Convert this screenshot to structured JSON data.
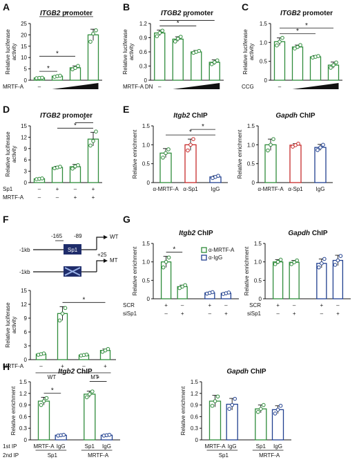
{
  "colors": {
    "green": "#2e8b3a",
    "red": "#c62828",
    "blue": "#1f3f8f",
    "black": "#111111"
  },
  "panel_letters": [
    "A",
    "B",
    "C",
    "D",
    "E",
    "F",
    "G",
    "H"
  ],
  "chart_data": [
    {
      "id": "A",
      "type": "bar",
      "title": {
        "italic": "ITGB2",
        "rest": " promoter"
      },
      "ylabel": "Relative luciferase activity",
      "ylim": [
        0,
        25
      ],
      "yticks": [
        "0",
        "5",
        "10",
        "15",
        "20",
        "25"
      ],
      "series": [
        {
          "color": "green",
          "values": [
            1.0,
            1.8,
            5.5,
            20.0
          ],
          "errors": [
            0.2,
            0.3,
            0.8,
            2.5
          ],
          "points": [
            [
              0.9,
              1.0,
              1.1
            ],
            [
              1.5,
              1.8,
              2.0
            ],
            [
              4.8,
              5.4,
              6.3
            ],
            [
              17.0,
              20.5,
              22.0
            ]
          ]
        }
      ],
      "conditions": [
        {
          "label": "MRTF-A",
          "marks": [
            "–",
            "ramp",
            "ramp",
            "ramp"
          ]
        }
      ],
      "significance": [
        [
          0,
          1
        ],
        [
          0,
          2
        ],
        [
          0,
          3
        ]
      ]
    },
    {
      "id": "B",
      "type": "bar",
      "title": {
        "italic": "ITGB2",
        "rest": " promoter"
      },
      "ylabel": "Relative luciferase activity",
      "ylim": [
        0,
        1.2
      ],
      "yticks": [
        "0",
        "0.3",
        "0.6",
        "0.9",
        "1.2"
      ],
      "series": [
        {
          "color": "green",
          "values": [
            1.0,
            0.87,
            0.6,
            0.38
          ],
          "errors": [
            0.06,
            0.05,
            0.03,
            0.05
          ],
          "points": [
            [
              0.93,
              1.0,
              1.05
            ],
            [
              0.82,
              0.88,
              0.92
            ],
            [
              0.58,
              0.6,
              0.62
            ],
            [
              0.34,
              0.38,
              0.42
            ]
          ]
        }
      ],
      "conditions": [
        {
          "label": "MRTF-A DN",
          "marks": [
            "–",
            "ramp",
            "ramp",
            "ramp"
          ]
        }
      ],
      "significance": [
        [
          0,
          2
        ],
        [
          0,
          3
        ]
      ]
    },
    {
      "id": "C",
      "type": "bar",
      "title": {
        "italic": "ITGB2",
        "rest": " promoter"
      },
      "ylabel": "Relative luciferase activity",
      "ylim": [
        0,
        1.5
      ],
      "yticks": [
        "0",
        "0.5",
        "1.0",
        "1.5"
      ],
      "series": [
        {
          "color": "green",
          "values": [
            1.02,
            0.88,
            0.62,
            0.4
          ],
          "errors": [
            0.1,
            0.05,
            0.03,
            0.08
          ],
          "points": [
            [
              0.92,
              1.02,
              1.12
            ],
            [
              0.84,
              0.88,
              0.93
            ],
            [
              0.6,
              0.62,
              0.64
            ],
            [
              0.33,
              0.4,
              0.47
            ]
          ]
        }
      ],
      "conditions": [
        {
          "label": "CCG",
          "marks": [
            "–",
            "ramp",
            "ramp",
            "ramp"
          ]
        }
      ],
      "significance": [
        [
          0,
          2
        ],
        [
          0,
          3
        ]
      ]
    },
    {
      "id": "D",
      "type": "bar",
      "title": {
        "italic": "ITGB2",
        "rest": " promoter"
      },
      "ylabel": "Relative luciferase activity",
      "ylim": [
        0,
        15
      ],
      "yticks": [
        "0",
        "3",
        "6",
        "9",
        "12",
        "15"
      ],
      "series": [
        {
          "color": "green",
          "values": [
            1.0,
            4.0,
            4.2,
            11.5
          ],
          "errors": [
            0.2,
            0.3,
            0.6,
            1.8
          ],
          "points": [
            [
              0.9,
              1.0,
              1.1
            ],
            [
              3.8,
              4.0,
              4.2
            ],
            [
              3.7,
              4.3,
              4.6
            ],
            [
              9.8,
              11.0,
              13.5
            ]
          ]
        }
      ],
      "conditions": [
        {
          "label": "Sp1",
          "marks": [
            "–",
            "+",
            "–",
            "+"
          ]
        },
        {
          "label": "MRTF-A",
          "marks": [
            "–",
            "–",
            "+",
            "+"
          ]
        }
      ],
      "significance": [
        [
          1,
          3
        ],
        [
          2,
          3
        ]
      ]
    },
    {
      "id": "E1",
      "type": "bar",
      "title": {
        "italic": "Itgb2",
        "rest": " ChIP"
      },
      "ylabel": "Relative enrichment",
      "ylim": [
        0,
        1.5
      ],
      "yticks": [
        "0",
        "0.5",
        "1.0",
        "1.5"
      ],
      "series": [
        {
          "colors": [
            "green",
            "red",
            "blue"
          ],
          "values": [
            0.78,
            1.0,
            0.15
          ],
          "errors": [
            0.12,
            0.15,
            0.03
          ],
          "points": [
            [
              0.66,
              0.78,
              0.88
            ],
            [
              0.85,
              1.0,
              1.15
            ],
            [
              0.12,
              0.15,
              0.18
            ]
          ]
        }
      ],
      "categories": [
        "α-MRTF-A",
        "α-Sp1",
        "IgG"
      ],
      "significance": [
        [
          0,
          2
        ],
        [
          1,
          2
        ]
      ]
    },
    {
      "id": "E2",
      "type": "bar",
      "title": {
        "italic": "Gapdh",
        "rest": " ChIP"
      },
      "ylabel": "Relative enrichment",
      "ylim": [
        0,
        1.5
      ],
      "yticks": [
        "0",
        "0.5",
        "1.0",
        "1.5"
      ],
      "series": [
        {
          "colors": [
            "green",
            "red",
            "blue"
          ],
          "values": [
            1.0,
            0.99,
            0.93
          ],
          "errors": [
            0.15,
            0.04,
            0.08
          ],
          "points": [
            [
              0.85,
              1.0,
              1.15
            ],
            [
              0.95,
              0.99,
              1.03
            ],
            [
              0.86,
              0.93,
              1.0
            ]
          ]
        }
      ],
      "categories": [
        "α-MRTF-A",
        "α-Sp1",
        "IgG"
      ],
      "significance": []
    },
    {
      "id": "F",
      "type": "bar",
      "ylabel": "Relative luciferase activity",
      "ylim": [
        0,
        15
      ],
      "yticks": [
        "0",
        "3",
        "6",
        "9",
        "12",
        "15"
      ],
      "series": [
        {
          "color": "green",
          "values": [
            1.2,
            10.0,
            1.0,
            2.0
          ],
          "errors": [
            0.15,
            1.5,
            0.1,
            0.3
          ],
          "points": [
            [
              1.05,
              1.2,
              1.35
            ],
            [
              8.5,
              10.0,
              11.2
            ],
            [
              0.9,
              1.0,
              1.1
            ],
            [
              1.7,
              2.0,
              2.3
            ]
          ]
        }
      ],
      "conditions": [
        {
          "label": "MRTF-A",
          "marks": [
            "–",
            "+",
            "–",
            "+"
          ]
        }
      ],
      "groups": [
        "WT",
        "MT"
      ],
      "significance": [
        [
          1,
          3
        ]
      ]
    },
    {
      "id": "G1",
      "type": "bar",
      "title": {
        "italic": "Itgb2",
        "rest": " ChIP"
      },
      "ylabel": "Relative enrichment",
      "ylim": [
        0,
        1.5
      ],
      "yticks": [
        "0",
        "0.5",
        "1.0",
        "1.5"
      ],
      "series": [
        {
          "colors": [
            "green",
            "green",
            "blue",
            "blue"
          ],
          "values": [
            1.0,
            0.33,
            0.16,
            0.15
          ],
          "errors": [
            0.15,
            0.04,
            0.02,
            0.02
          ],
          "points": [
            [
              0.85,
              1.0,
              1.12
            ],
            [
              0.29,
              0.33,
              0.37
            ],
            [
              0.14,
              0.16,
              0.18
            ],
            [
              0.13,
              0.15,
              0.17
            ]
          ]
        }
      ],
      "conditions": [
        {
          "label": "SCR",
          "marks": [
            "+",
            "–",
            "+",
            "–"
          ]
        },
        {
          "label": "siSp1",
          "marks": [
            "–",
            "+",
            "–",
            "+"
          ]
        }
      ],
      "legend": [
        "α-MRTF-A",
        "α-IgG"
      ],
      "significance": [
        [
          0,
          1
        ]
      ]
    },
    {
      "id": "G2",
      "type": "bar",
      "title": {
        "italic": "Gapdh",
        "rest": " ChIP"
      },
      "ylabel": "Relative enrichment",
      "ylim": [
        0,
        1.5
      ],
      "yticks": [
        "0",
        "0.5",
        "1.0",
        "1.5"
      ],
      "series": [
        {
          "colors": [
            "green",
            "green",
            "blue",
            "blue"
          ],
          "values": [
            1.0,
            0.99,
            0.96,
            1.04
          ],
          "errors": [
            0.06,
            0.05,
            0.12,
            0.14
          ],
          "points": [
            [
              0.94,
              1.0,
              1.06
            ],
            [
              0.94,
              0.99,
              1.04
            ],
            [
              0.85,
              0.96,
              1.08
            ],
            [
              0.92,
              1.04,
              1.16
            ]
          ]
        }
      ],
      "conditions": [
        {
          "label": "SCR",
          "marks": [
            "+",
            "–",
            "+",
            "–"
          ]
        },
        {
          "label": "siSp1",
          "marks": [
            "–",
            "+",
            "–",
            "+"
          ]
        }
      ],
      "significance": []
    },
    {
      "id": "H1",
      "type": "bar",
      "title": {
        "italic": "Itgb2",
        "rest": " ChIP"
      },
      "ylabel": "Relative enrichment",
      "ylim": [
        0,
        1.5
      ],
      "yticks": [
        "0",
        "0.3",
        "0.6",
        "0.9",
        "1.2",
        "1.5"
      ],
      "series": [
        {
          "colors": [
            "green",
            "blue",
            "green",
            "blue"
          ],
          "values": [
            1.0,
            0.12,
            1.18,
            0.12
          ],
          "errors": [
            0.1,
            0.01,
            0.08,
            0.01
          ],
          "points": [
            [
              0.9,
              1.0,
              1.08
            ],
            [
              0.11,
              0.12,
              0.13
            ],
            [
              1.1,
              1.18,
              1.25
            ],
            [
              0.11,
              0.12,
              0.13
            ]
          ]
        }
      ],
      "first_ip": [
        "MRTF-A",
        "IgG",
        "Sp1",
        "IgG"
      ],
      "second_ip": [
        "Sp1",
        "MRTF-A"
      ],
      "significance": [
        [
          0,
          1
        ],
        [
          2,
          3
        ]
      ]
    },
    {
      "id": "H2",
      "type": "bar",
      "title": {
        "italic": "Gapdh",
        "rest": " ChIP"
      },
      "ylabel": "Relative enrichment",
      "ylim": [
        0,
        1.5
      ],
      "yticks": [
        "0",
        "0.3",
        "0.6",
        "0.9",
        "1.2",
        "1.5"
      ],
      "series": [
        {
          "colors": [
            "green",
            "blue",
            "green",
            "blue"
          ],
          "values": [
            1.0,
            0.92,
            0.8,
            0.78
          ],
          "errors": [
            0.15,
            0.15,
            0.1,
            0.1
          ],
          "points": [
            [
              0.88,
              1.0,
              1.12
            ],
            [
              0.8,
              0.9,
              1.06
            ],
            [
              0.72,
              0.8,
              0.9
            ],
            [
              0.68,
              0.78,
              0.88
            ]
          ]
        }
      ],
      "first_ip": [
        "MRTF-A",
        "IgG",
        "Sp1",
        "IgG"
      ],
      "second_ip": [
        "Sp1",
        "MRTF-A"
      ],
      "significance": []
    }
  ],
  "promoter_diagram": {
    "left_label": "-1kb",
    "wt_box": "Sp1",
    "wt_tag": "WT",
    "mt_tag": "MT",
    "pos_a": "-165",
    "pos_b": "-89",
    "pos_c": "+25"
  },
  "row_labels": {
    "first_ip": "1st IP",
    "second_ip": "2nd IP"
  },
  "sig_mark": "*"
}
